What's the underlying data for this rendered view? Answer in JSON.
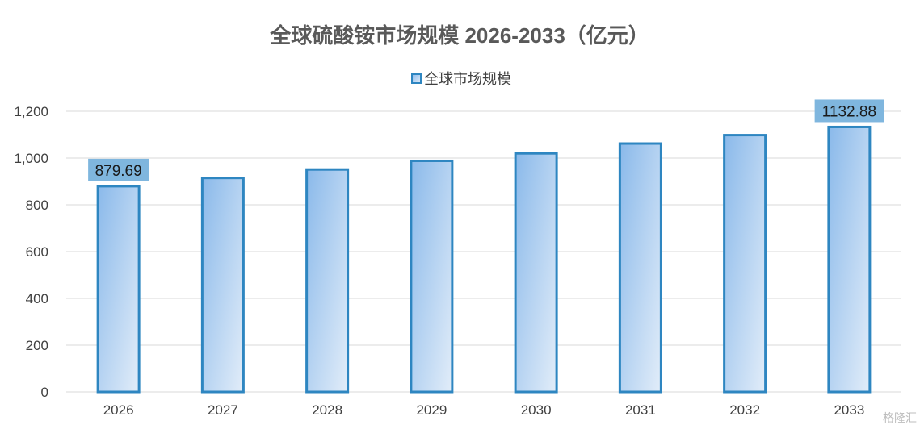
{
  "chart_data": {
    "type": "bar",
    "title": "全球硫酸铵市场规模 2026-2033（亿元）",
    "legend": {
      "entries": [
        "全球市场规模"
      ],
      "position": "top"
    },
    "categories": [
      "2026",
      "2027",
      "2028",
      "2029",
      "2030",
      "2031",
      "2032",
      "2033"
    ],
    "series": [
      {
        "name": "全球市场规模",
        "values": [
          879.69,
          915,
          951,
          988,
          1020,
          1062,
          1098,
          1132.88
        ]
      }
    ],
    "data_labels": {
      "2026": "879.69",
      "2033": "1132.88"
    },
    "ylim": [
      0,
      1200
    ],
    "yticks": [
      0,
      200,
      400,
      600,
      800,
      1000,
      1200
    ],
    "ytick_labels": [
      "0",
      "200",
      "400",
      "600",
      "800",
      "1,000",
      "1,200"
    ],
    "grid": true,
    "colors": {
      "bar_stroke": "#2e86c1",
      "bar_fill_top": "#8ab9ea",
      "bar_fill_bottom": "#deeaf8",
      "label_box": "#7fb6de"
    }
  },
  "watermark": "格隆汇"
}
